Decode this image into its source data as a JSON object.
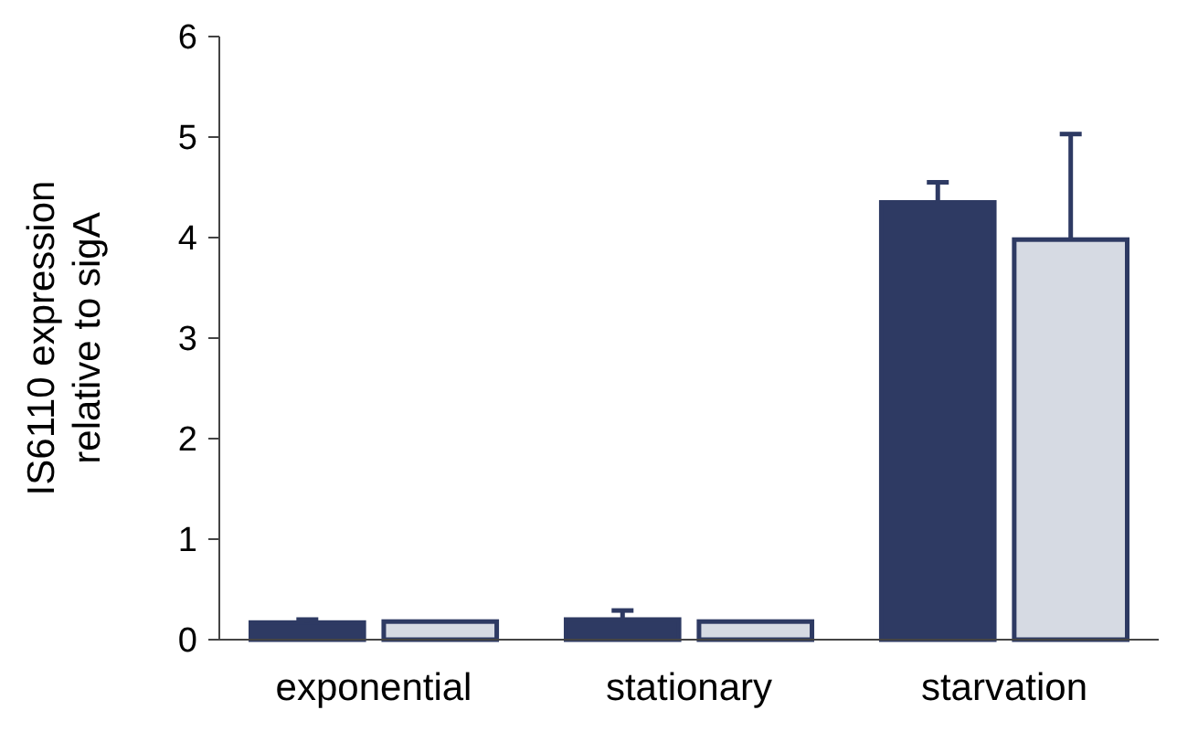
{
  "chart_data": {
    "type": "bar",
    "ylabel": "IS6110 expression\nrelative to sigA",
    "categories": [
      "exponential",
      "stationary",
      "starvation"
    ],
    "series": [
      {
        "color": "#2e3a63",
        "values": [
          0.17,
          0.2,
          4.35
        ],
        "errors": [
          0.03,
          0.09,
          0.2
        ]
      },
      {
        "color": "#d6dae3",
        "values": [
          0.18,
          0.18,
          3.98
        ],
        "errors": [
          null,
          null,
          1.05
        ]
      }
    ],
    "ylim": [
      0,
      6
    ],
    "yticks": [
      0,
      1,
      2,
      3,
      4,
      5,
      6
    ]
  }
}
